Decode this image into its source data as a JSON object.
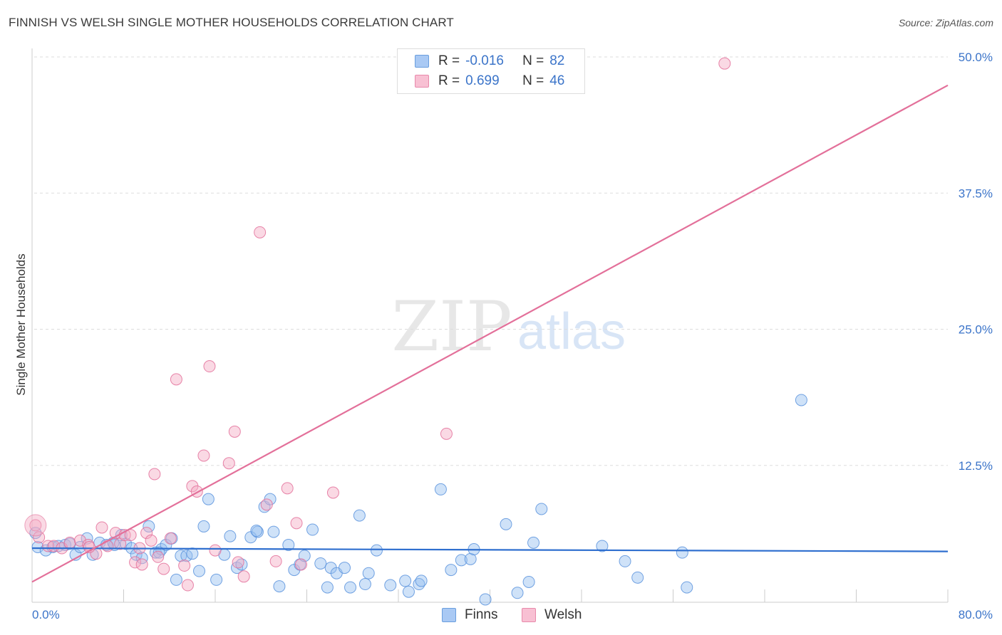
{
  "title": "FINNISH VS WELSH SINGLE MOTHER HOUSEHOLDS CORRELATION CHART",
  "source": "Source: ZipAtlas.com",
  "watermark": {
    "zip": "ZIP",
    "atlas": "atlas"
  },
  "legend": {
    "rows": [
      {
        "r_label": "R =",
        "r_value": "-0.016",
        "n_label": "N =",
        "n_value": "82",
        "fill": "#a9c9f4",
        "stroke": "#6a9ede"
      },
      {
        "r_label": "R =",
        "r_value": "0.699",
        "n_label": "N =",
        "n_value": "46",
        "fill": "#f8c0d3",
        "stroke": "#e889ab"
      }
    ]
  },
  "bottom_legend": [
    {
      "label": "Finns",
      "fill": "#a9c9f4",
      "stroke": "#6a9ede"
    },
    {
      "label": "Welsh",
      "fill": "#f8c0d3",
      "stroke": "#e889ab"
    }
  ],
  "chart_data": {
    "type": "scatter",
    "title": "FINNISH VS WELSH SINGLE MOTHER HOUSEHOLDS CORRELATION CHART",
    "xlabel": "",
    "ylabel": "Single Mother Households",
    "xlim": [
      0,
      80
    ],
    "ylim": [
      0,
      50
    ],
    "x_tick_labels": [
      "0.0%",
      "80.0%"
    ],
    "y_ticks": [
      12.5,
      25.0,
      37.5,
      50.0
    ],
    "y_tick_labels": [
      "12.5%",
      "25.0%",
      "37.5%",
      "50.0%"
    ],
    "grid": true,
    "series": [
      {
        "name": "Finns",
        "color": "#5b93dd",
        "fill": "rgba(148,190,240,0.45)",
        "R": -0.016,
        "N": 82,
        "trend": {
          "x": [
            0,
            80
          ],
          "y": [
            4.9,
            4.6
          ]
        },
        "points": [
          [
            0.5,
            5.0
          ],
          [
            1.2,
            4.7
          ],
          [
            1.8,
            5.0
          ],
          [
            2.3,
            5.1
          ],
          [
            2.9,
            5.2
          ],
          [
            3.3,
            5.3
          ],
          [
            3.8,
            4.3
          ],
          [
            4.2,
            5.0
          ],
          [
            4.8,
            5.8
          ],
          [
            5.3,
            4.3
          ],
          [
            5.9,
            5.4
          ],
          [
            6.5,
            5.2
          ],
          [
            7.2,
            5.2
          ],
          [
            7.8,
            6.1
          ],
          [
            8.2,
            5.3
          ],
          [
            8.7,
            4.9
          ],
          [
            9.1,
            4.3
          ],
          [
            9.6,
            4.0
          ],
          [
            10.2,
            6.9
          ],
          [
            10.8,
            4.5
          ],
          [
            11.3,
            4.8
          ],
          [
            11.7,
            5.2
          ],
          [
            12.2,
            5.8
          ],
          [
            12.6,
            2.0
          ],
          [
            13.0,
            4.2
          ],
          [
            13.5,
            4.2
          ],
          [
            14.0,
            4.4
          ],
          [
            14.6,
            2.8
          ],
          [
            15.0,
            6.9
          ],
          [
            15.4,
            9.4
          ],
          [
            16.1,
            2.0
          ],
          [
            16.8,
            4.3
          ],
          [
            17.3,
            6.0
          ],
          [
            17.9,
            3.1
          ],
          [
            18.3,
            3.4
          ],
          [
            19.1,
            5.9
          ],
          [
            19.7,
            6.4
          ],
          [
            20.3,
            8.7
          ],
          [
            20.8,
            9.4
          ],
          [
            21.1,
            6.4
          ],
          [
            21.6,
            1.4
          ],
          [
            22.4,
            5.2
          ],
          [
            22.9,
            2.9
          ],
          [
            23.4,
            3.4
          ],
          [
            23.8,
            4.2
          ],
          [
            24.5,
            6.6
          ],
          [
            25.2,
            3.5
          ],
          [
            25.8,
            1.3
          ],
          [
            26.1,
            3.1
          ],
          [
            26.6,
            2.6
          ],
          [
            27.3,
            3.1
          ],
          [
            27.8,
            1.3
          ],
          [
            28.6,
            7.9
          ],
          [
            29.1,
            1.6
          ],
          [
            29.4,
            2.6
          ],
          [
            30.1,
            4.7
          ],
          [
            31.3,
            1.5
          ],
          [
            32.6,
            1.9
          ],
          [
            32.9,
            0.9
          ],
          [
            33.8,
            1.6
          ],
          [
            34.0,
            1.9
          ],
          [
            35.7,
            10.3
          ],
          [
            36.6,
            2.9
          ],
          [
            37.5,
            3.8
          ],
          [
            38.3,
            3.9
          ],
          [
            38.6,
            4.8
          ],
          [
            39.6,
            0.2
          ],
          [
            41.4,
            7.1
          ],
          [
            42.4,
            0.8
          ],
          [
            43.4,
            1.8
          ],
          [
            43.8,
            5.4
          ],
          [
            44.5,
            8.5
          ],
          [
            49.8,
            5.1
          ],
          [
            51.8,
            3.7
          ],
          [
            52.9,
            2.2
          ],
          [
            56.8,
            4.5
          ],
          [
            57.2,
            1.3
          ],
          [
            67.2,
            18.5
          ],
          [
            0.3,
            6.3
          ],
          [
            7.1,
            5.4
          ],
          [
            11.1,
            4.5
          ],
          [
            19.6,
            6.5
          ]
        ]
      },
      {
        "name": "Welsh",
        "color": "#e3709a",
        "fill": "rgba(245,170,196,0.45)",
        "R": 0.699,
        "N": 46,
        "trend": {
          "x": [
            0,
            80
          ],
          "y": [
            1.8,
            47.4
          ]
        },
        "points": [
          [
            0.3,
            7.0
          ],
          [
            0.6,
            5.9
          ],
          [
            1.4,
            5.1
          ],
          [
            1.9,
            5.1
          ],
          [
            2.6,
            4.9
          ],
          [
            3.3,
            5.4
          ],
          [
            4.2,
            5.6
          ],
          [
            4.9,
            5.2
          ],
          [
            5.6,
            4.4
          ],
          [
            6.1,
            6.8
          ],
          [
            6.6,
            5.1
          ],
          [
            7.3,
            6.3
          ],
          [
            7.7,
            5.3
          ],
          [
            8.1,
            6.1
          ],
          [
            8.6,
            6.1
          ],
          [
            9.0,
            3.6
          ],
          [
            9.4,
            4.9
          ],
          [
            9.6,
            3.4
          ],
          [
            10.0,
            6.3
          ],
          [
            10.4,
            5.6
          ],
          [
            10.7,
            11.7
          ],
          [
            11.0,
            4.1
          ],
          [
            11.5,
            3.0
          ],
          [
            12.1,
            5.8
          ],
          [
            12.6,
            20.4
          ],
          [
            13.3,
            3.3
          ],
          [
            13.6,
            1.5
          ],
          [
            14.0,
            10.6
          ],
          [
            14.4,
            10.1
          ],
          [
            15.0,
            13.4
          ],
          [
            15.5,
            21.6
          ],
          [
            16.0,
            4.7
          ],
          [
            17.2,
            12.7
          ],
          [
            17.7,
            15.6
          ],
          [
            18.0,
            3.6
          ],
          [
            18.5,
            2.3
          ],
          [
            19.9,
            33.9
          ],
          [
            20.5,
            8.9
          ],
          [
            21.3,
            3.7
          ],
          [
            22.3,
            10.4
          ],
          [
            23.1,
            7.2
          ],
          [
            23.5,
            3.4
          ],
          [
            26.3,
            10.0
          ],
          [
            36.2,
            15.4
          ],
          [
            60.5,
            49.4
          ],
          [
            5.0,
            5.0
          ]
        ]
      }
    ]
  }
}
